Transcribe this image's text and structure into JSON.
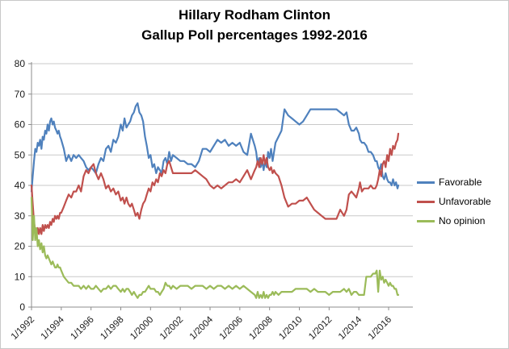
{
  "title": {
    "line1": "Hillary Rodham Clinton",
    "line2": "Gallup Poll percentages 1992-2016"
  },
  "legend": {
    "items": [
      {
        "label": "Favorable",
        "color": "#4F81BD"
      },
      {
        "label": "Unfavorable",
        "color": "#C0504D"
      },
      {
        "label": "No opinion",
        "color": "#9BBB59"
      }
    ]
  },
  "axes": {
    "y": {
      "min": 0,
      "max": 80,
      "tick_step": 10,
      "tick_labels": [
        "0",
        "10",
        "20",
        "30",
        "40",
        "50",
        "60",
        "70",
        "80"
      ]
    },
    "x": {
      "tick_labels": [
        "1/1992",
        "1/1994",
        "1/1996",
        "1/1998",
        "1/2000",
        "1/2002",
        "1/2004",
        "1/2006",
        "1/2008",
        "1/2010",
        "1/2012",
        "1/2014",
        "1/2016"
      ],
      "tick_years": [
        1992,
        1994,
        1996,
        1998,
        2000,
        2002,
        2004,
        2006,
        2008,
        2010,
        2012,
        2014,
        2016
      ]
    }
  },
  "colors": {
    "grid": "#c9c9c9",
    "axis": "#8c8c8c",
    "text": "#1a1a1a",
    "border": "#c8c8c8"
  },
  "chart_data": {
    "type": "line",
    "title": "Hillary Rodham Clinton — Gallup Poll percentages 1992-2016",
    "xlabel": "",
    "ylabel": "",
    "x_unit": "decimal year (poll date)",
    "ylim": [
      0,
      80
    ],
    "xlim": [
      1992,
      2017.7
    ],
    "grid": true,
    "legend_position": "right",
    "x": [
      1992.0,
      1992.08,
      1992.17,
      1992.25,
      1992.33,
      1992.42,
      1992.5,
      1992.58,
      1992.67,
      1992.75,
      1992.83,
      1992.92,
      1993.0,
      1993.08,
      1993.17,
      1993.25,
      1993.33,
      1993.42,
      1993.5,
      1993.58,
      1993.67,
      1993.75,
      1993.83,
      1993.92,
      1994.0,
      1994.17,
      1994.33,
      1994.5,
      1994.67,
      1994.83,
      1995.0,
      1995.17,
      1995.33,
      1995.5,
      1995.67,
      1995.83,
      1996.0,
      1996.17,
      1996.33,
      1996.5,
      1996.67,
      1996.83,
      1997.0,
      1997.17,
      1997.33,
      1997.5,
      1997.67,
      1997.83,
      1998.0,
      1998.13,
      1998.25,
      1998.38,
      1998.5,
      1998.63,
      1998.75,
      1998.88,
      1999.0,
      1999.13,
      1999.25,
      1999.38,
      1999.5,
      1999.63,
      1999.75,
      1999.88,
      2000.0,
      2000.13,
      2000.25,
      2000.38,
      2000.5,
      2000.63,
      2000.75,
      2000.88,
      2001.0,
      2001.13,
      2001.25,
      2001.38,
      2001.5,
      2001.75,
      2002.0,
      2002.25,
      2002.5,
      2002.75,
      2003.0,
      2003.25,
      2003.5,
      2003.75,
      2004.0,
      2004.25,
      2004.5,
      2004.75,
      2005.0,
      2005.25,
      2005.5,
      2005.75,
      2006.0,
      2006.25,
      2006.5,
      2006.75,
      2007.0,
      2007.1,
      2007.2,
      2007.3,
      2007.4,
      2007.5,
      2007.6,
      2007.7,
      2007.8,
      2007.9,
      2008.0,
      2008.1,
      2008.2,
      2008.3,
      2008.4,
      2008.6,
      2008.8,
      2009.0,
      2009.25,
      2009.5,
      2009.75,
      2010.0,
      2010.25,
      2010.5,
      2010.75,
      2011.0,
      2011.25,
      2011.5,
      2011.75,
      2012.0,
      2012.25,
      2012.5,
      2012.75,
      2013.0,
      2013.17,
      2013.33,
      2013.5,
      2013.67,
      2013.83,
      2014.0,
      2014.08,
      2014.2,
      2014.35,
      2014.5,
      2014.65,
      2014.8,
      2014.95,
      2015.1,
      2015.2,
      2015.3,
      2015.4,
      2015.5,
      2015.6,
      2015.7,
      2015.8,
      2015.9,
      2016.0,
      2016.1,
      2016.2,
      2016.3,
      2016.4,
      2016.5,
      2016.6,
      2016.65
    ],
    "series": [
      {
        "name": "Favorable",
        "color": "#4F81BD",
        "values": [
          38,
          43,
          48,
          52,
          51,
          54,
          53,
          55,
          52,
          56,
          55,
          58,
          57,
          60,
          58,
          61,
          62,
          60,
          61,
          59,
          58,
          57,
          58,
          56,
          55,
          52,
          48,
          50,
          48,
          50,
          49,
          50,
          49,
          48,
          46,
          45,
          46,
          45,
          44,
          47,
          49,
          48,
          52,
          53,
          51,
          55,
          54,
          56,
          60,
          58,
          62,
          59,
          60,
          61,
          63,
          64,
          66,
          67,
          64,
          63,
          61,
          56,
          53,
          49,
          50,
          46,
          47,
          44,
          46,
          45,
          44,
          48,
          49,
          47,
          51,
          48,
          50,
          49,
          48,
          48,
          47,
          47,
          46,
          48,
          52,
          52,
          51,
          53,
          55,
          54,
          55,
          53,
          54,
          53,
          54,
          51,
          50,
          57,
          53,
          51,
          47,
          49,
          46,
          48,
          45,
          48,
          46,
          51,
          49,
          52,
          48,
          51,
          54,
          56,
          58,
          65,
          63,
          62,
          61,
          60,
          61,
          63,
          65,
          65,
          65,
          65,
          65,
          65,
          65,
          65,
          64,
          63,
          64,
          60,
          58,
          58,
          59,
          57,
          55,
          54,
          54,
          53,
          51,
          51,
          50,
          48,
          48,
          46,
          45,
          47,
          43,
          42,
          44,
          42,
          41,
          41,
          40,
          42,
          40,
          41,
          39,
          40
        ]
      },
      {
        "name": "Unfavorable",
        "color": "#C0504D",
        "values": [
          40,
          34,
          28,
          25,
          23,
          26,
          24,
          26,
          24,
          27,
          25,
          27,
          26,
          27,
          26,
          28,
          27,
          29,
          28,
          30,
          29,
          30,
          29,
          31,
          31,
          33,
          35,
          37,
          36,
          38,
          38,
          40,
          38,
          43,
          45,
          44,
          46,
          47,
          44,
          42,
          44,
          42,
          39,
          40,
          38,
          39,
          37,
          38,
          35,
          36,
          34,
          36,
          34,
          33,
          34,
          32,
          30,
          31,
          29,
          32,
          34,
          35,
          37,
          39,
          38,
          41,
          40,
          42,
          41,
          44,
          43,
          45,
          44,
          47,
          48,
          46,
          44,
          44,
          44,
          44,
          44,
          44,
          45,
          44,
          43,
          42,
          40,
          39,
          40,
          39,
          40,
          41,
          41,
          42,
          41,
          43,
          45,
          42,
          45,
          46,
          48,
          46,
          49,
          47,
          50,
          47,
          49,
          46,
          45,
          46,
          44,
          45,
          44,
          43,
          40,
          36,
          33,
          34,
          34,
          35,
          35,
          36,
          34,
          32,
          31,
          30,
          29,
          29,
          29,
          29,
          32,
          30,
          32,
          37,
          38,
          37,
          36,
          39,
          41,
          38,
          39,
          39,
          39,
          40,
          39,
          39,
          40,
          42,
          45,
          43,
          47,
          48,
          46,
          50,
          48,
          52,
          50,
          53,
          52,
          54,
          55,
          57
        ]
      },
      {
        "name": "No opinion",
        "color": "#9BBB59",
        "values": [
          36,
          22,
          30,
          22,
          26,
          20,
          22,
          19,
          21,
          18,
          20,
          17,
          16,
          17,
          16,
          15,
          14,
          15,
          14,
          13,
          13,
          14,
          13,
          13,
          12,
          10,
          9,
          8,
          8,
          7,
          7,
          7,
          6,
          7,
          6,
          7,
          6,
          6,
          7,
          6,
          5,
          6,
          6,
          7,
          6,
          7,
          7,
          6,
          5,
          6,
          5,
          6,
          6,
          5,
          4,
          5,
          4,
          3,
          4,
          4,
          5,
          5,
          6,
          7,
          6,
          6,
          6,
          5,
          5,
          4,
          5,
          6,
          8,
          7,
          7,
          6,
          7,
          6,
          7,
          7,
          7,
          6,
          7,
          7,
          7,
          6,
          7,
          6,
          7,
          7,
          6,
          7,
          6,
          7,
          6,
          7,
          6,
          5,
          4,
          3,
          5,
          3,
          4,
          3,
          5,
          3,
          4,
          3,
          4,
          4,
          5,
          4,
          5,
          4,
          5,
          5,
          5,
          5,
          6,
          6,
          6,
          6,
          5,
          6,
          5,
          5,
          5,
          4,
          5,
          5,
          5,
          6,
          5,
          6,
          4,
          5,
          5,
          4,
          4,
          4,
          4,
          10,
          10,
          10,
          11,
          11,
          12,
          5,
          12,
          9,
          10,
          8,
          9,
          8,
          7,
          8,
          7,
          7,
          6,
          6,
          4,
          4
        ]
      }
    ]
  }
}
